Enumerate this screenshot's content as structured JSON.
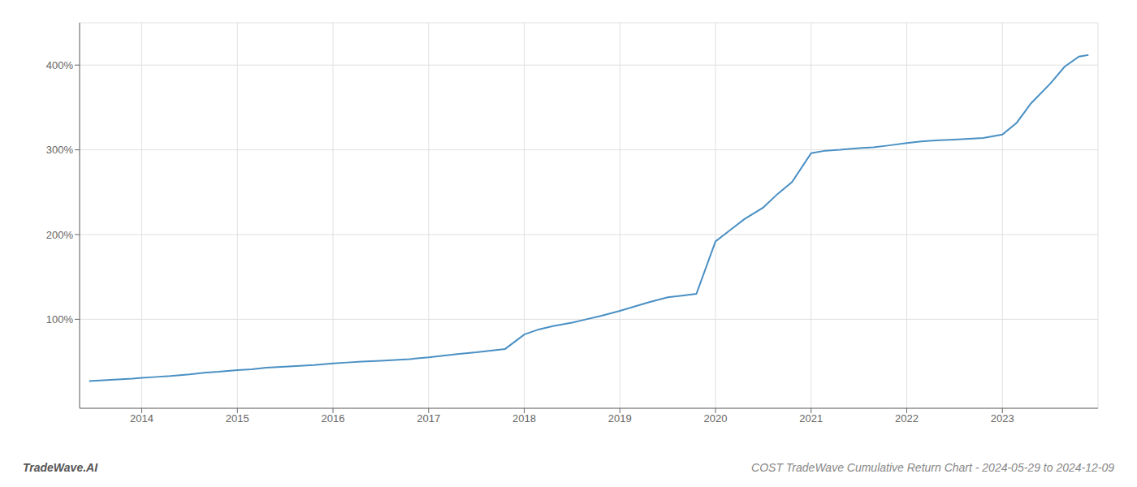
{
  "chart_data": {
    "type": "line",
    "title": "COST TradeWave Cumulative Return Chart - 2024-05-29 to 2024-12-09",
    "annotations": [
      "TradeWave.AI"
    ],
    "color": "#4a90c4",
    "grid": true,
    "x": [
      2013.45,
      2013.6,
      2013.75,
      2013.9,
      2014.0,
      2014.15,
      2014.3,
      2014.5,
      2014.65,
      2014.8,
      2015.0,
      2015.15,
      2015.3,
      2015.5,
      2015.65,
      2015.8,
      2016.0,
      2016.15,
      2016.3,
      2016.5,
      2016.65,
      2016.8,
      2017.0,
      2017.15,
      2017.3,
      2017.5,
      2017.65,
      2017.8,
      2018.0,
      2018.15,
      2018.3,
      2018.5,
      2018.65,
      2018.8,
      2019.0,
      2019.15,
      2019.3,
      2019.5,
      2019.65,
      2019.8,
      2020.0,
      2020.15,
      2020.3,
      2020.5,
      2020.65,
      2020.8,
      2021.0,
      2021.15,
      2021.3,
      2021.5,
      2021.65,
      2021.8,
      2022.0,
      2022.15,
      2022.3,
      2022.5,
      2022.65,
      2022.8,
      2023.0,
      2023.15,
      2023.3,
      2023.5,
      2023.65,
      2023.8,
      2023.9
    ],
    "values": [
      27,
      28,
      29,
      30,
      31,
      32,
      33,
      35,
      37,
      38,
      40,
      41,
      43,
      44,
      45,
      46,
      48,
      49,
      50,
      51,
      52,
      53,
      55,
      57,
      59,
      61,
      63,
      65,
      82,
      88,
      92,
      96,
      100,
      104,
      110,
      115,
      120,
      126,
      128,
      130,
      192,
      205,
      218,
      232,
      248,
      262,
      296,
      299,
      300,
      302,
      303,
      305,
      308,
      310,
      311,
      312,
      313,
      314,
      318,
      332,
      355,
      378,
      398,
      410,
      412
    ],
    "xlim": [
      2013.35,
      2024.0
    ],
    "xticks": [
      2014,
      2015,
      2016,
      2017,
      2018,
      2019,
      2020,
      2021,
      2022,
      2023
    ],
    "ylim": [
      -5,
      450
    ],
    "yticks": [
      {
        "value": 100,
        "label": "100%"
      },
      {
        "value": 200,
        "label": "200%"
      },
      {
        "value": 300,
        "label": "300%"
      },
      {
        "value": 400,
        "label": "400%"
      }
    ]
  }
}
